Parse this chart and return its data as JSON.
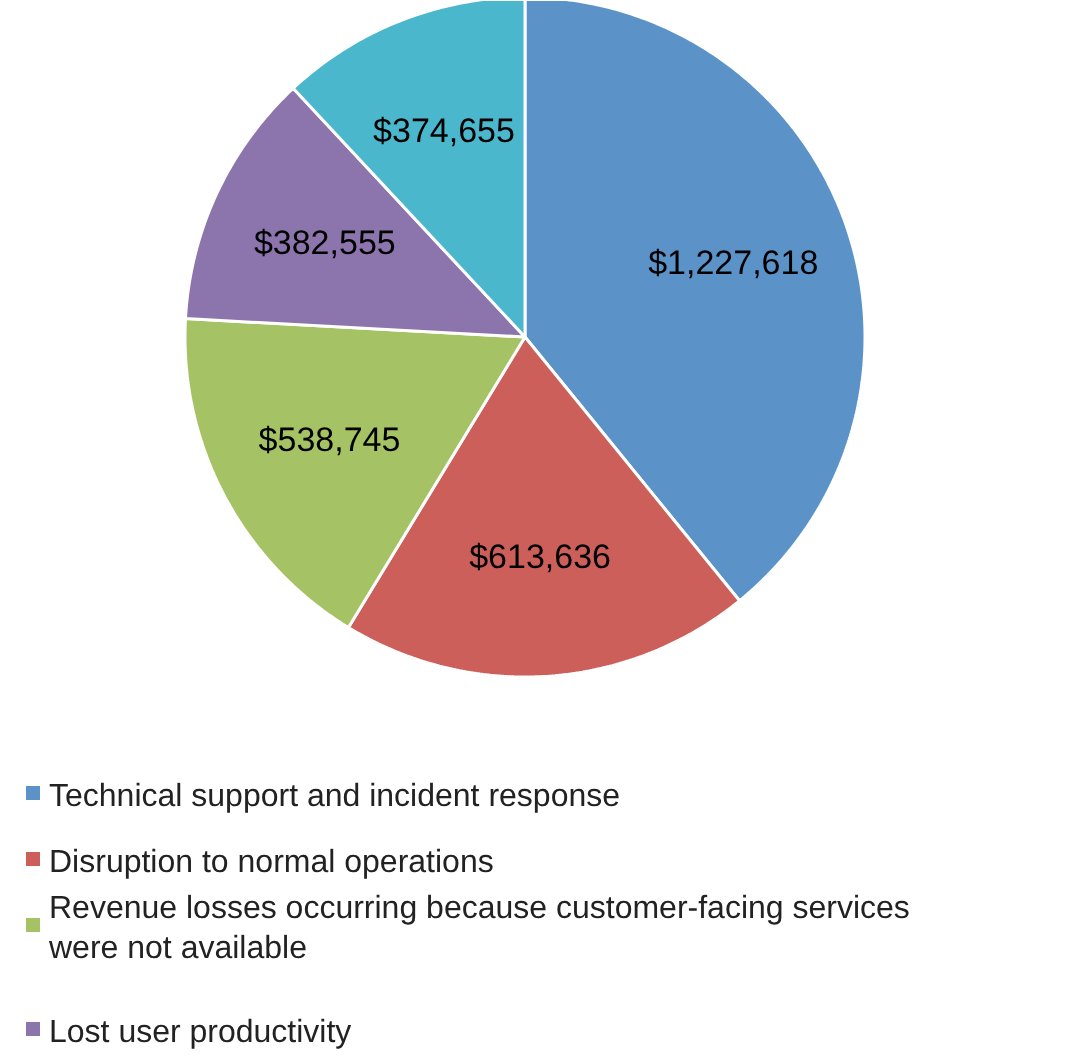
{
  "chart_data": {
    "type": "pie",
    "categories": [
      "Technical support and incident response",
      "Disruption to normal operations",
      "Revenue losses occurring because customer-facing services were not available",
      "Lost user productivity",
      null
    ],
    "values": [
      1227618,
      613636,
      538745,
      382555,
      374655
    ],
    "value_labels": [
      "$1,227,618",
      "$613,636",
      "$538,745",
      "$382,555",
      "$374,655"
    ],
    "colors": [
      "#5b93c8",
      "#cd5f5a",
      "#a5c264",
      "#8c75ad",
      "#4bb7cc"
    ],
    "legend": "bottom"
  }
}
